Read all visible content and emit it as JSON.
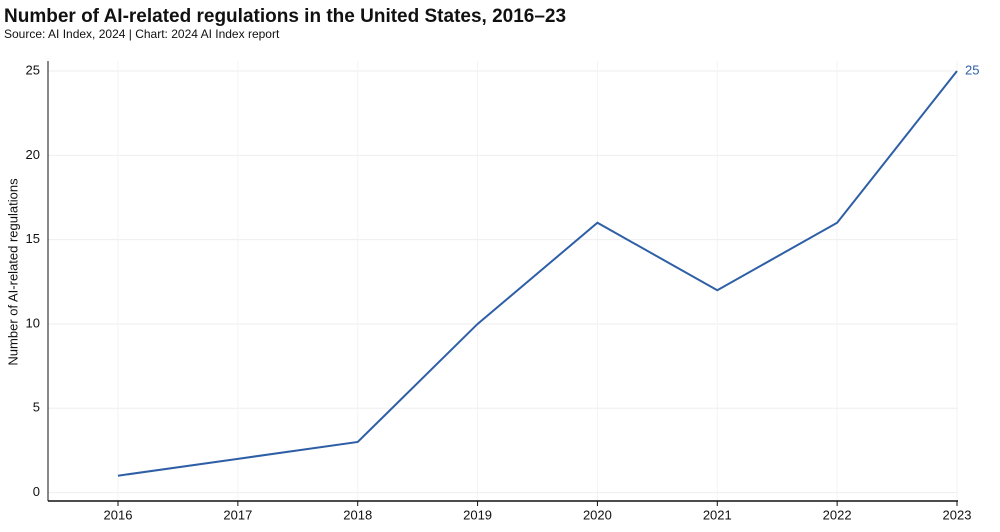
{
  "chart_data": {
    "type": "line",
    "title": "Number of AI-related regulations in the United States, 2016–23",
    "subtitle": "Source: AI Index, 2024 | Chart: 2024 AI Index report",
    "y_label": "Number of AI-related regulations",
    "categories": [
      "2016",
      "2017",
      "2018",
      "2019",
      "2020",
      "2021",
      "2022",
      "2023"
    ],
    "values": [
      1,
      2,
      3,
      10,
      16,
      12,
      16,
      25
    ],
    "color": "#2e5fa6",
    "ylim": [
      -0.5,
      25
    ],
    "yticks": [
      0,
      5,
      10,
      15,
      20,
      25
    ],
    "grid": true
  }
}
